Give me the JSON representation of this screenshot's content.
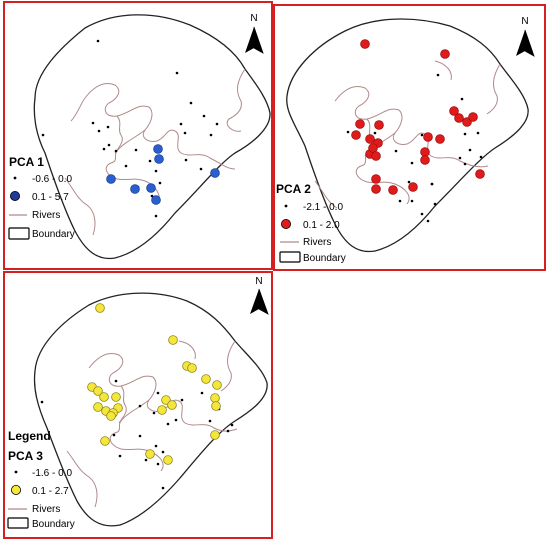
{
  "legend_heading": "Legend",
  "north_label": "N",
  "colors": {
    "frame": "#d42020",
    "river": "#b08a8a",
    "boundary": "#222222",
    "pca1_high": "#2a5fd1",
    "pca2_high": "#e01b1b",
    "pca3_high": "#f5e63a"
  },
  "panels": [
    {
      "title": "PCA 1",
      "low_range": "-0.6 - 0.0",
      "high_range": "0.1 - 5.7",
      "rivers_label": "Rivers",
      "boundary_label": "Boundary"
    },
    {
      "title": "PCA 2",
      "low_range": "-2.1 - 0.0",
      "high_range": "0.1 - 2.0",
      "rivers_label": "Rivers",
      "boundary_label": "Boundary"
    },
    {
      "title": "PCA 3",
      "low_range": "-1.6 - 0.0",
      "high_range": "0.1 - 2.7",
      "rivers_label": "Rivers",
      "boundary_label": "Boundary"
    }
  ]
}
